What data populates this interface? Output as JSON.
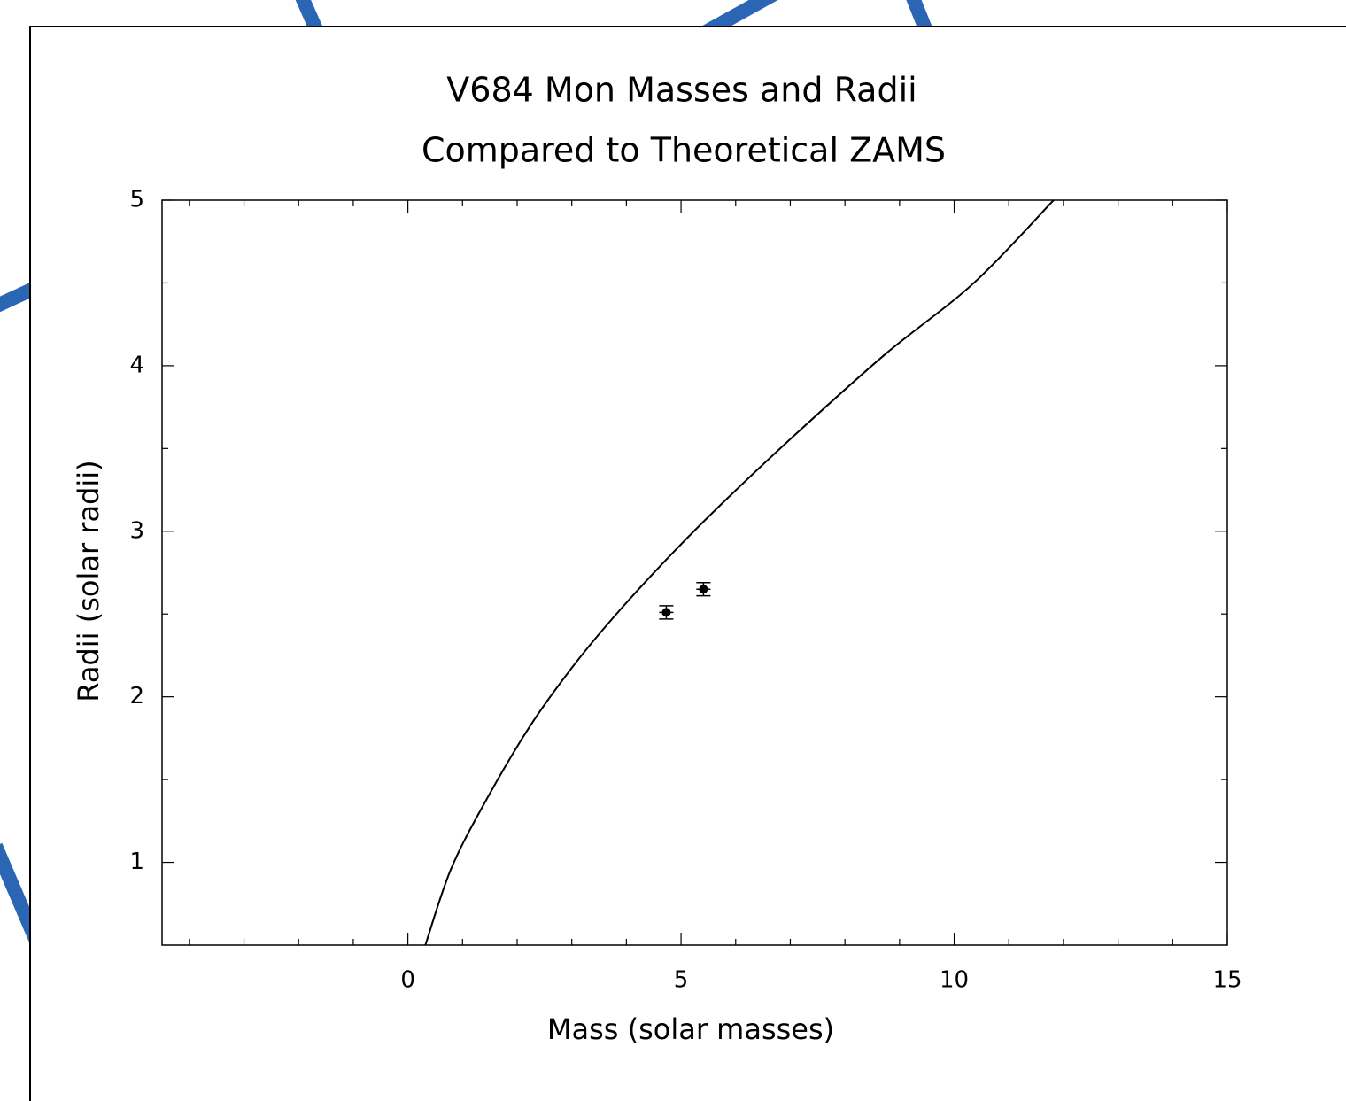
{
  "chart_data": {
    "type": "scatter",
    "title": "V684 Mon Masses and Radii",
    "subtitle": "Compared to Theoretical ZAMS",
    "x_label": "Mass (solar masses)",
    "y_label": "Radii (solar radii)",
    "xlim": [
      -4.5,
      15
    ],
    "ylim": [
      0.5,
      5
    ],
    "xticks": [
      0,
      5,
      10,
      15
    ],
    "yticks": [
      1,
      2,
      3,
      4,
      5
    ],
    "xminorticks": [
      -4,
      -3,
      -2,
      -1,
      1,
      2,
      3,
      4,
      6,
      7,
      8,
      9,
      11,
      12,
      13,
      14
    ],
    "yminorticks": [
      1.5,
      2.5,
      3.5,
      4.5
    ],
    "series": [
      {
        "mode": "line",
        "color": "#000000",
        "x": [
          0.32,
          0.79,
          1.44,
          2.25,
          3.06,
          3.87,
          4.85,
          5.82,
          7.11,
          8.74,
          10.36,
          11.82
        ],
        "values": [
          0.5,
          0.96,
          1.38,
          1.83,
          2.2,
          2.52,
          2.87,
          3.19,
          3.59,
          4.07,
          4.5,
          5.0
        ]
      },
      {
        "mode": "markers",
        "color": "#000000",
        "x": [
          4.73,
          5.41
        ],
        "values": [
          2.51,
          2.65
        ],
        "xerr": [
          0.13,
          0.13
        ],
        "yerr": [
          0.04,
          0.04
        ]
      }
    ]
  }
}
